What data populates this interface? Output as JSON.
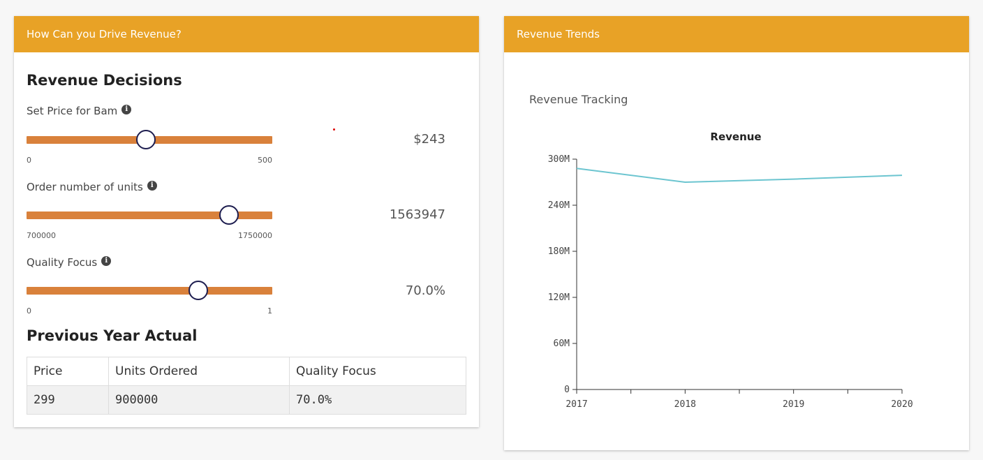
{
  "left_panel": {
    "header": "How Can you Drive Revenue?",
    "decisions_title": "Revenue Decisions",
    "sliders": [
      {
        "label": "Set Price for Bam",
        "min": "0",
        "max": "500",
        "value": 243,
        "display": "$243"
      },
      {
        "label": "Order number of units",
        "min": "700000",
        "max": "1750000",
        "value": 1563947,
        "display": "1563947"
      },
      {
        "label": "Quality Focus",
        "min": "0",
        "max": "1",
        "value": 0.7,
        "display": "70.0%"
      }
    ],
    "previous_title": "Previous Year Actual",
    "table": {
      "headers": [
        "Price",
        "Units Ordered",
        "Quality Focus"
      ],
      "row": [
        "299",
        "900000",
        "70.0%"
      ]
    }
  },
  "right_panel": {
    "header": "Revenue Trends",
    "subtitle": "Revenue Tracking"
  },
  "chart_data": {
    "type": "line",
    "title": "Revenue",
    "x": [
      "2017",
      "2018",
      "2019",
      "2020"
    ],
    "series": [
      {
        "values": [
          288000000,
          270000000,
          274000000,
          279000000
        ],
        "color": "#6cc5d0"
      }
    ],
    "ylim": [
      0,
      300000000
    ],
    "yticks": [
      "0",
      "60M",
      "120M",
      "180M",
      "240M",
      "300M"
    ],
    "ytick_values": [
      0,
      60000000,
      120000000,
      180000000,
      240000000,
      300000000
    ],
    "grid": false
  }
}
